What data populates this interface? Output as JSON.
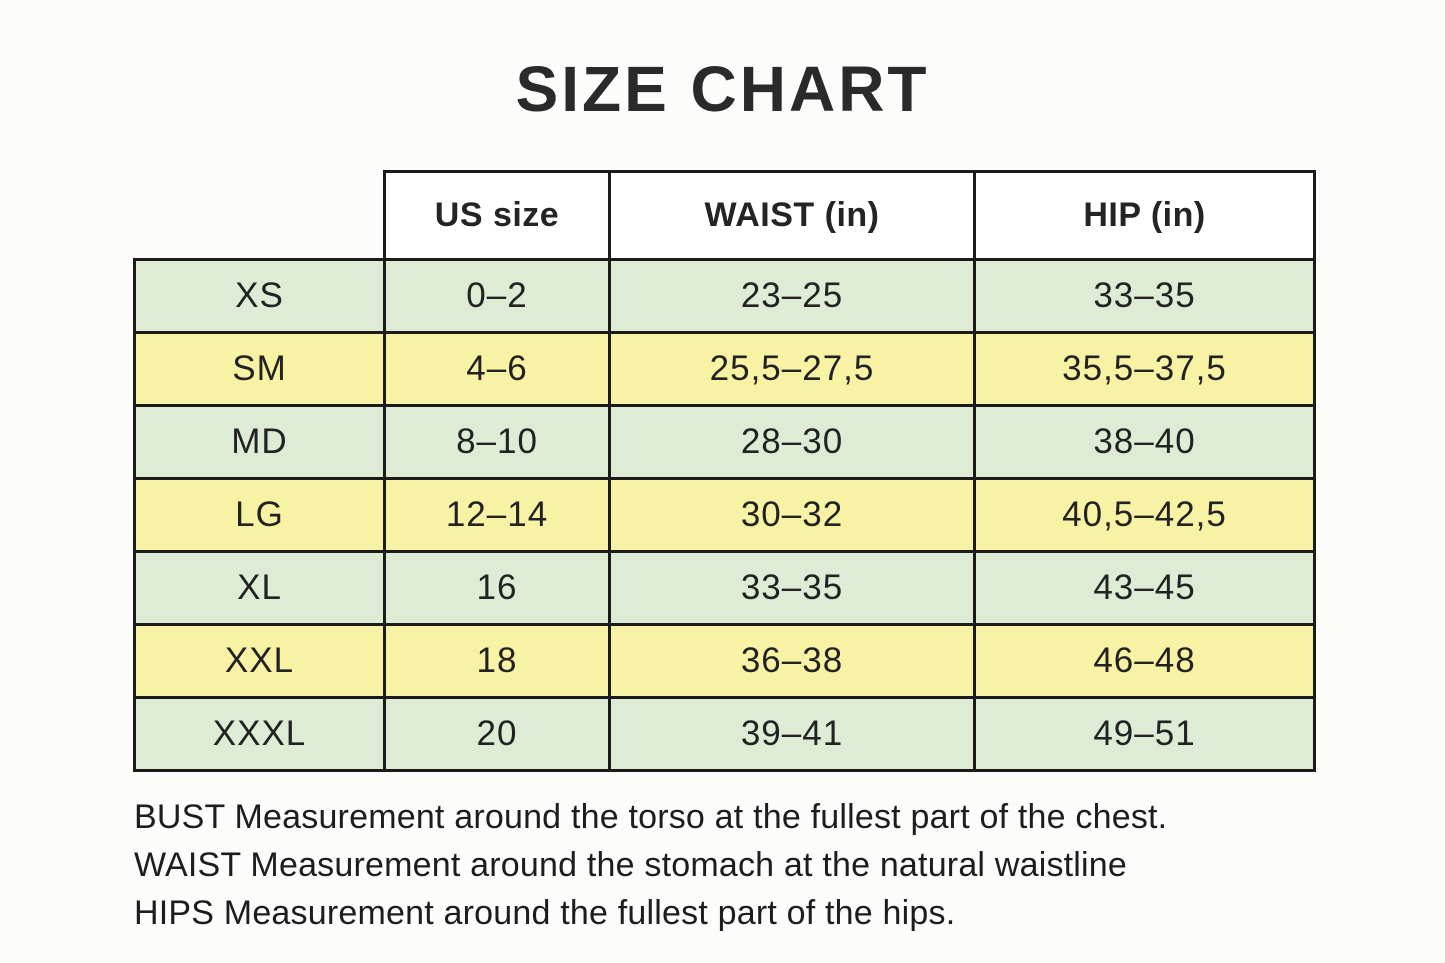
{
  "page": {
    "title": "SIZE CHART"
  },
  "size_table": {
    "headers": {
      "us_size": "US size",
      "waist": "WAIST (in)",
      "hip": "HIP (in)"
    },
    "rows": [
      {
        "size": "XS",
        "us_size": "0–2",
        "waist": "23–25",
        "hip": "33–35"
      },
      {
        "size": "SM",
        "us_size": "4–6",
        "waist": "25,5–27,5",
        "hip": "35,5–37,5"
      },
      {
        "size": "MD",
        "us_size": "8–10",
        "waist": "28–30",
        "hip": "38–40"
      },
      {
        "size": "LG",
        "us_size": "12–14",
        "waist": "30–32",
        "hip": "40,5–42,5"
      },
      {
        "size": "XL",
        "us_size": "16",
        "waist": "33–35",
        "hip": "43–45"
      },
      {
        "size": "XXL",
        "us_size": "18",
        "waist": "36–38",
        "hip": "46–48"
      },
      {
        "size": "XXXL",
        "us_size": "20",
        "waist": "39–41",
        "hip": "49–51"
      }
    ],
    "colors": {
      "row_green": "#deecd6",
      "row_yellow": "#f8f2a4",
      "header_bg": "#ffffff",
      "border": "#1b1b1b"
    }
  },
  "notes": {
    "line1": "BUST Measurement around the torso at the fullest part of the chest.",
    "line2": "WAIST Measurement around the stomach at the natural waistline",
    "line3": "HIPS Measurement around the fullest part of the hips."
  }
}
